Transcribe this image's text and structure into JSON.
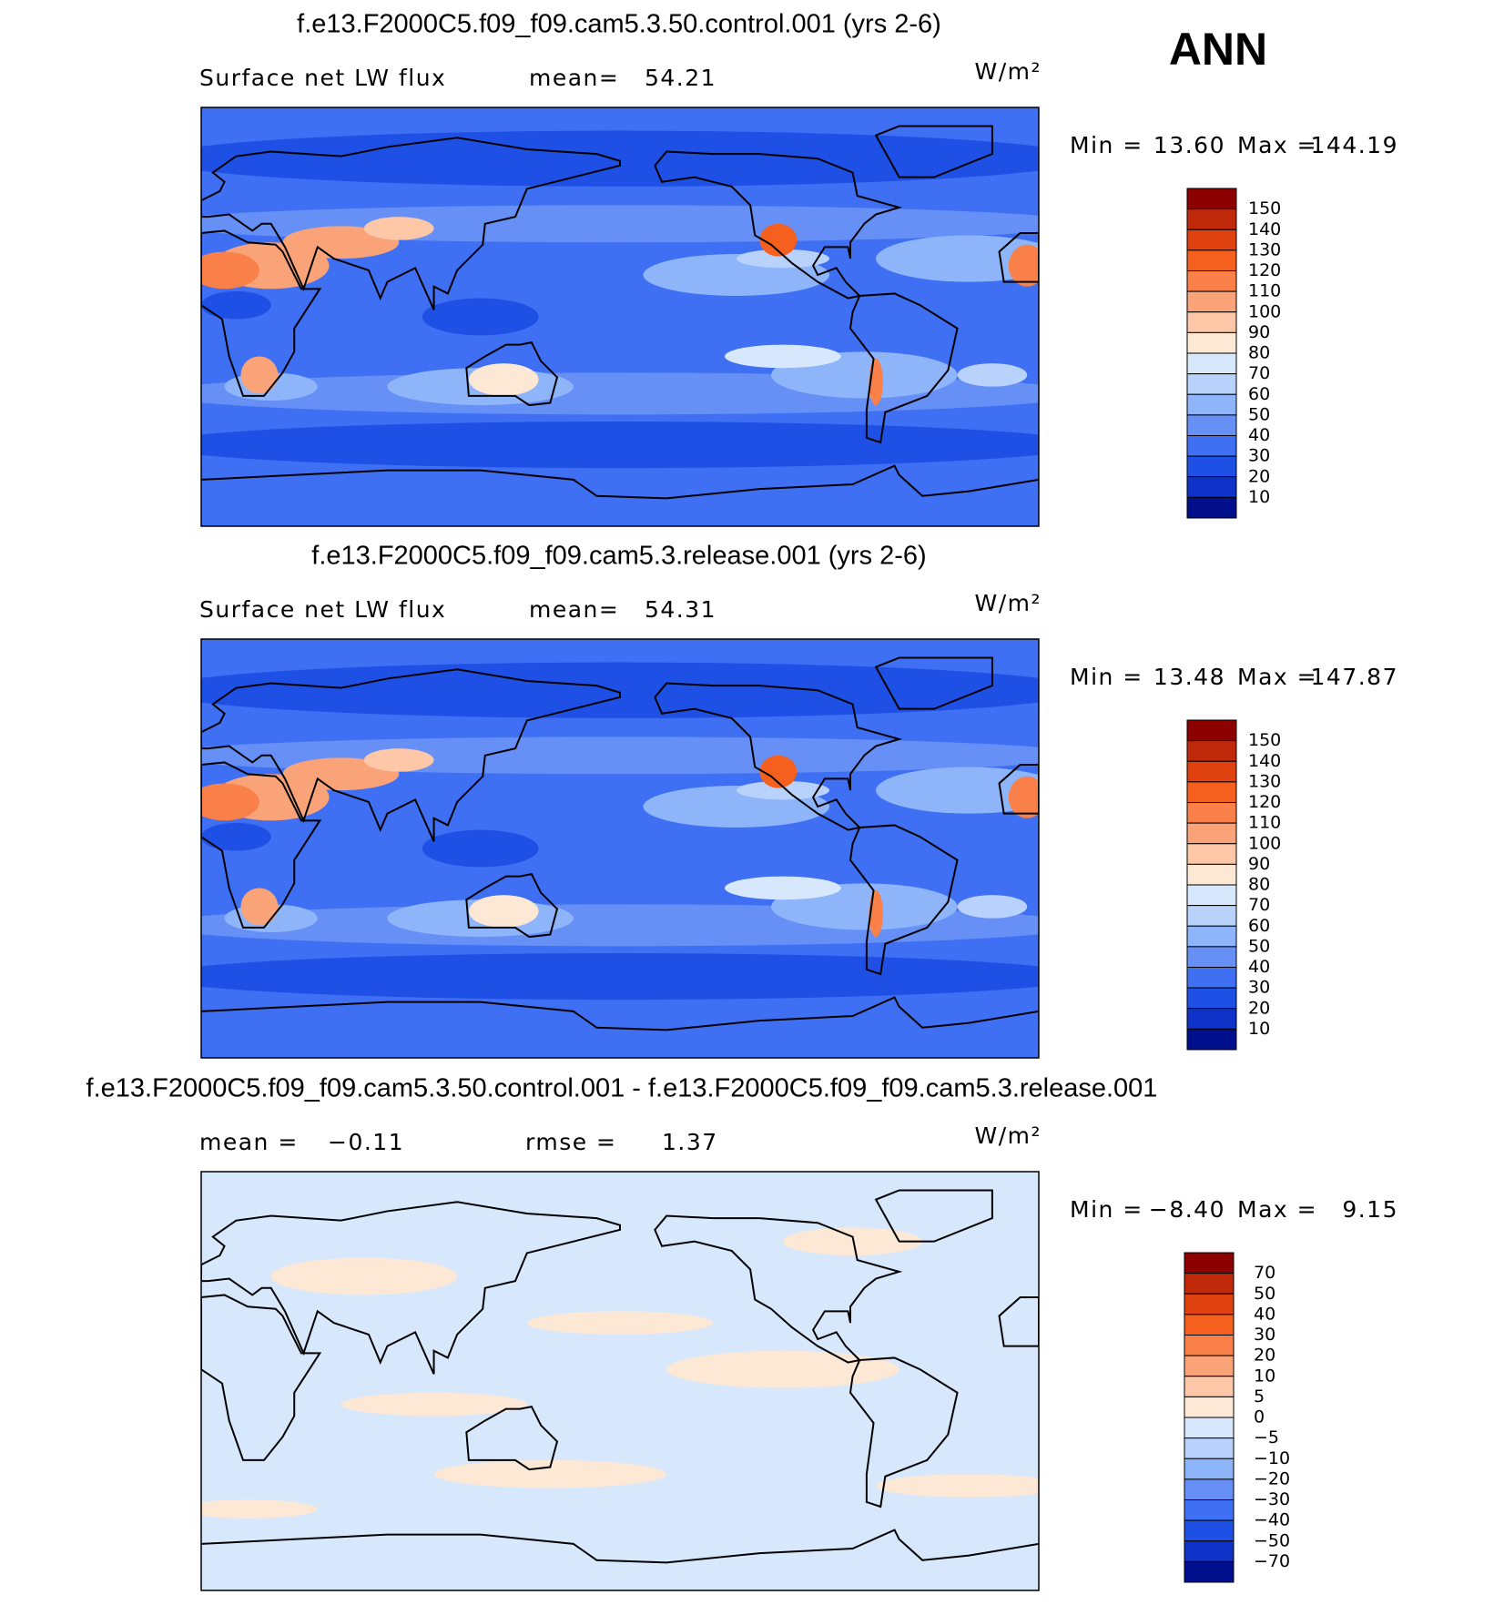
{
  "header": {
    "season": "ANN"
  },
  "panels": [
    {
      "title": "f.e13.F2000C5.f09_f09.cam5.3.50.control.001 (yrs 2-6)",
      "subtitle": [
        "Surface net LW flux",
        "mean=",
        "54.21"
      ],
      "units": "W/m²",
      "min_label": "Min =",
      "min_value": "13.60",
      "max_label": "Max =",
      "max_value": "144.19",
      "colorbar": {
        "labels": [
          "150",
          "140",
          "130",
          "120",
          "110",
          "100",
          "90",
          "80",
          "70",
          "60",
          "50",
          "40",
          "30",
          "20",
          "10"
        ],
        "colors": [
          "#8c0000",
          "#c02a0a",
          "#e0420f",
          "#f5601e",
          "#f98048",
          "#fba378",
          "#fdc7a8",
          "#fde8d6",
          "#d8e8fc",
          "#b8d2fc",
          "#8eb5fa",
          "#6690f6",
          "#3f6ff2",
          "#1e50e6",
          "#0f32c8",
          "#00108c"
        ]
      }
    },
    {
      "title": "f.e13.F2000C5.f09_f09.cam5.3.release.001 (yrs 2-6)",
      "subtitle": [
        "Surface net LW flux",
        "mean=",
        "54.31"
      ],
      "units": "W/m²",
      "min_label": "Min =",
      "min_value": "13.48",
      "max_label": "Max =",
      "max_value": "147.87",
      "colorbar": {
        "labels": [
          "150",
          "140",
          "130",
          "120",
          "110",
          "100",
          "90",
          "80",
          "70",
          "60",
          "50",
          "40",
          "30",
          "20",
          "10"
        ],
        "colors": [
          "#8c0000",
          "#c02a0a",
          "#e0420f",
          "#f5601e",
          "#f98048",
          "#fba378",
          "#fdc7a8",
          "#fde8d6",
          "#d8e8fc",
          "#b8d2fc",
          "#8eb5fa",
          "#6690f6",
          "#3f6ff2",
          "#1e50e6",
          "#0f32c8",
          "#00108c"
        ]
      }
    },
    {
      "title": "f.e13.F2000C5.f09_f09.cam5.3.50.control.001 - f.e13.F2000C5.f09_f09.cam5.3.release.001",
      "subtitle": [
        "mean =",
        "−0.11",
        "rmse =",
        "1.37"
      ],
      "units": "W/m²",
      "min_label": "Min =",
      "min_value": "−8.40",
      "max_label": "Max =",
      "max_value": "9.15",
      "colorbar": {
        "labels": [
          "70",
          "50",
          "40",
          "30",
          "20",
          "10",
          "5",
          "0",
          "−5",
          "−10",
          "−20",
          "−30",
          "−40",
          "−50",
          "−70"
        ],
        "colors": [
          "#8c0000",
          "#c02a0a",
          "#e0420f",
          "#f5601e",
          "#f98048",
          "#fba378",
          "#fdc7a8",
          "#fde8d6",
          "#d8e8fc",
          "#b8d2fc",
          "#8eb5fa",
          "#6690f6",
          "#3f6ff2",
          "#1e50e6",
          "#0f32c8",
          "#00108c"
        ]
      }
    }
  ]
}
